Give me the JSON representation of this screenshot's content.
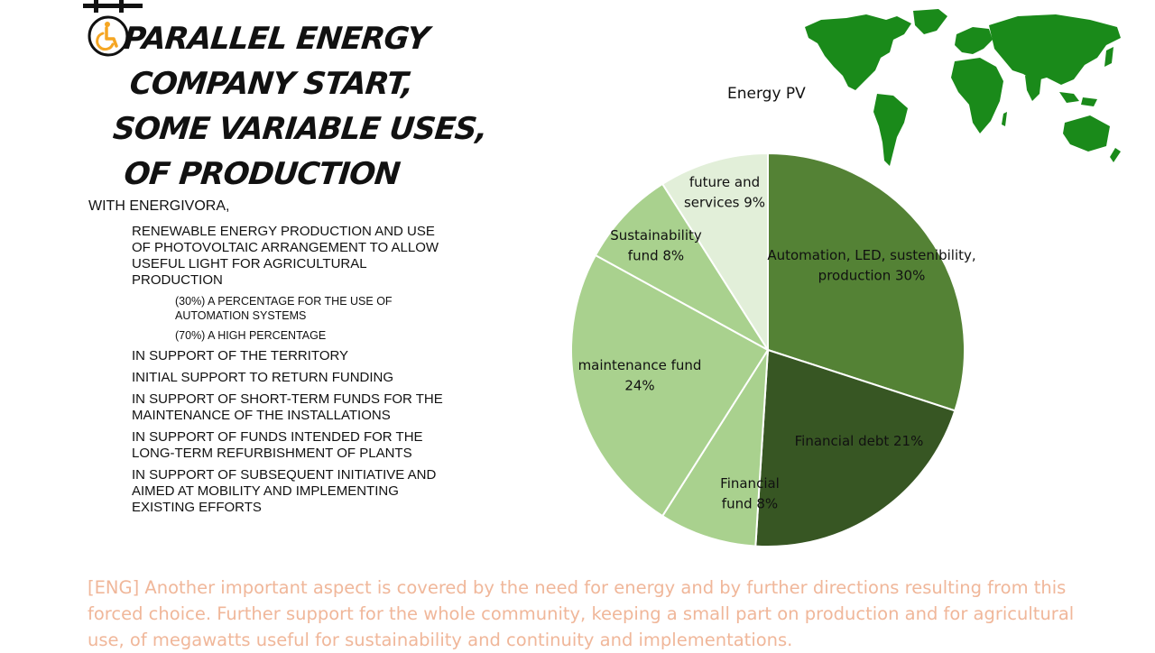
{
  "slide": {
    "title_lines": [
      "PARALLEL ENERGY",
      "COMPANY START,",
      "SOME VARIABLE USES,",
      "OF PRODUCTION"
    ],
    "intro": "WITH ENERGIVORA,",
    "items": [
      "RENEWABLE ENERGY PRODUCTION AND USE OF PHOTOVOLTAIC ARRANGEMENT TO ALLOW USEFUL LIGHT FOR AGRICULTURAL PRODUCTION"
    ],
    "sub_items": [
      "(30%) A PERCENTAGE FOR THE USE OF AUTOMATION SYSTEMS",
      "(70%) A HIGH PERCENTAGE"
    ],
    "support_items": [
      "IN SUPPORT OF THE TERRITORY",
      "INITIAL SUPPORT TO RETURN FUNDING",
      "IN SUPPORT OF SHORT-TERM FUNDS FOR THE MAINTENANCE OF THE INSTALLATIONS",
      "IN SUPPORT OF FUNDS INTENDED FOR THE LONG-TERM REFURBISHMENT OF PLANTS",
      "IN SUPPORT OF SUBSEQUENT INITIATIVE AND AIMED AT MOBILITY AND IMPLEMENTING EXISTING EFFORTS"
    ],
    "footer": "[ENG] Another important aspect is covered by the need for energy and by further directions resulting from this forced choice. Further support for the whole community, keeping a small part on production and for agricultural use, of megawatts useful for sustainability and continuity and implementations."
  },
  "colors": {
    "footer_text": "#f0b79a",
    "map_green": "#1a8a1a",
    "logo_orange": "#f5a623"
  },
  "icons": {
    "logo": "wheelchair-accessibility-icon",
    "map": "world-map-icon"
  },
  "chart_data": {
    "type": "pie",
    "title": "Energy PV",
    "slices": [
      {
        "label": "Automation, LED, sustenibility, production 30%",
        "value": 30,
        "color": "#548235"
      },
      {
        "label": "Financial debt 21%",
        "value": 21,
        "color": "#375623"
      },
      {
        "label": "Financial fund 8%",
        "value": 8,
        "color": "#a9d18e"
      },
      {
        "label": "maintenance fund 24%",
        "value": 24,
        "color": "#a9d18e"
      },
      {
        "label": "Sustainability fund 8%",
        "value": 8,
        "color": "#a9d18e"
      },
      {
        "label": "future and services 9%",
        "value": 9,
        "color": "#e2efd9"
      }
    ],
    "start": "12 o'clock",
    "direction": "clockwise",
    "legend": "none"
  }
}
